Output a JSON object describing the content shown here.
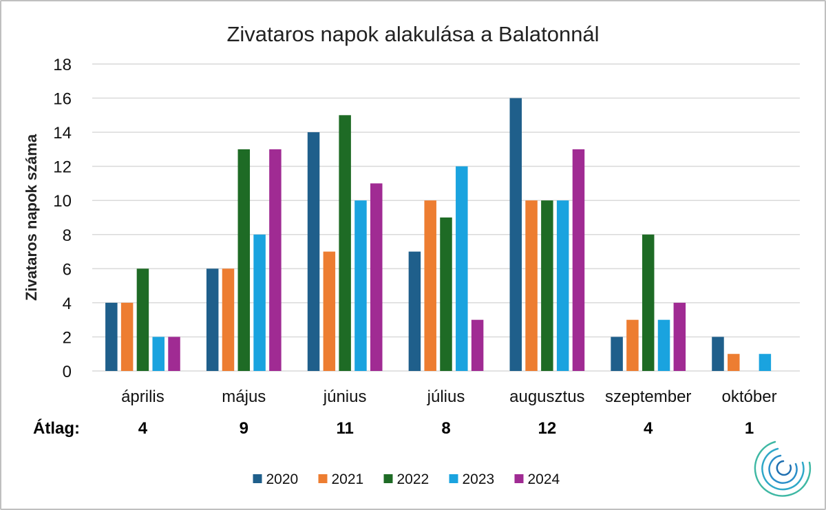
{
  "chart_data": {
    "type": "bar",
    "title": "Zivataros napok alakulása a Balatonnál",
    "ylabel": "Zivataros napok száma",
    "xlabel": "",
    "ylim": [
      0,
      18
    ],
    "yticks": [
      0,
      2,
      4,
      6,
      8,
      10,
      12,
      14,
      16,
      18
    ],
    "grid": true,
    "legend_position": "bottom",
    "categories": [
      "április",
      "május",
      "június",
      "július",
      "augusztus",
      "szeptember",
      "október"
    ],
    "series": [
      {
        "name": "2020",
        "color": "#1f5f8b",
        "values": [
          4,
          6,
          14,
          7,
          16,
          2,
          2
        ]
      },
      {
        "name": "2021",
        "color": "#ed7d31",
        "values": [
          4,
          6,
          7,
          10,
          10,
          3,
          1
        ]
      },
      {
        "name": "2022",
        "color": "#1e6b25",
        "values": [
          6,
          13,
          15,
          9,
          10,
          8,
          0
        ]
      },
      {
        "name": "2023",
        "color": "#1aa3df",
        "values": [
          2,
          8,
          10,
          12,
          10,
          3,
          1
        ]
      },
      {
        "name": "2024",
        "color": "#a02b93",
        "values": [
          2,
          13,
          11,
          3,
          13,
          4,
          0
        ]
      }
    ],
    "average_label": "Átlag:",
    "averages": [
      "4",
      "9",
      "11",
      "8",
      "12",
      "4",
      "1"
    ]
  }
}
